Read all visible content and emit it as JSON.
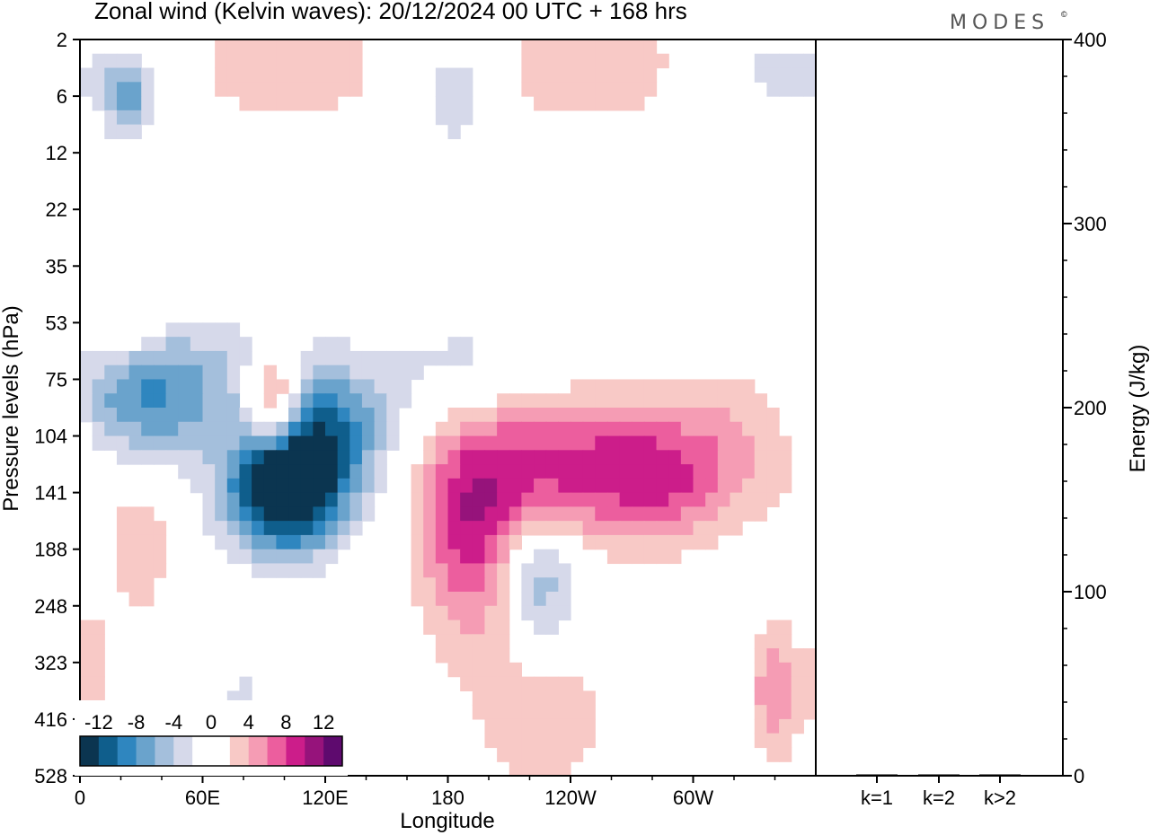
{
  "title": "Zonal wind (Kelvin waves):  20/12/2024  00 UTC  + 168 hrs",
  "logo": "MODES",
  "logo_mark": "©",
  "colors": {
    "neg": [
      "#0b3550",
      "#0f5e8c",
      "#2f86bf",
      "#6aa3cc",
      "#a4bfdc",
      "#d6d9ea"
    ],
    "pos": [
      "#f8c9c6",
      "#f59cb4",
      "#ec5e9e",
      "#cc1d8a",
      "#96137b",
      "#5e0a6e"
    ]
  },
  "chart_data": [
    {
      "type": "heatmap",
      "title": "Zonal wind (Kelvin waves):  20/12/2024  00 UTC  + 168 hrs",
      "xlabel": "Longitude",
      "ylabel": "Pressure levels (hPa)",
      "x_ticks": [
        "0",
        "60E",
        "120E",
        "180",
        "120W",
        "60W"
      ],
      "y_ticks": [
        "2",
        "6",
        "12",
        "22",
        "35",
        "53",
        "75",
        "104",
        "141",
        "188",
        "248",
        "323",
        "416",
        "528"
      ],
      "colorbar": {
        "labels": [
          "-12",
          "-8",
          "-4",
          "0",
          "4",
          "8",
          "12"
        ],
        "levels": [
          -14,
          -12,
          -10,
          -8,
          -6,
          -4,
          -2,
          2,
          4,
          6,
          8,
          10,
          12,
          14
        ]
      },
      "features": [
        {
          "lon": 100,
          "lev": 8.0,
          "value": -16,
          "sx": 20,
          "sy": 0.75
        },
        {
          "lon": 120,
          "lev": 6.9,
          "value": -9,
          "sx": 22,
          "sy": 0.8
        },
        {
          "lon": 28,
          "lev": 6.4,
          "value": -8,
          "sx": 25,
          "sy": 0.8
        },
        {
          "lon": 70,
          "lev": 5.9,
          "value": -3,
          "sx": 30,
          "sy": 0.8
        },
        {
          "lon": 190,
          "lev": 5.8,
          "value": -3,
          "sx": 30,
          "sy": 0.7
        },
        {
          "lon": 225,
          "lev": 9.6,
          "value": -6,
          "sx": 12,
          "sy": 0.8
        },
        {
          "lon": 80,
          "lev": 12.0,
          "value": -2.5,
          "sx": 10,
          "sy": 1.0
        },
        {
          "lon": 190,
          "lev": 8.8,
          "value": 8,
          "sx": 18,
          "sy": 1.3
        },
        {
          "lon": 230,
          "lev": 7.5,
          "value": 8,
          "sx": 35,
          "sy": 0.9
        },
        {
          "lon": 285,
          "lev": 7.8,
          "value": 6,
          "sx": 25,
          "sy": 0.8
        },
        {
          "lon": 330,
          "lev": 7.0,
          "value": 3.5,
          "sx": 35,
          "sy": 1.0
        },
        {
          "lon": 95,
          "lev": 6.4,
          "value": 10,
          "sx": 10,
          "sy": 0.6
        },
        {
          "lon": 23,
          "lev": 1.0,
          "value": -7,
          "sx": 8,
          "sy": 0.5
        },
        {
          "lon": 100,
          "lev": 0.5,
          "value": 3.5,
          "sx": 35,
          "sy": 0.8
        },
        {
          "lon": 250,
          "lev": 0.5,
          "value": 3.5,
          "sx": 45,
          "sy": 0.8
        },
        {
          "lon": 185,
          "lev": 0.9,
          "value": -4,
          "sx": 15,
          "sy": 0.8
        },
        {
          "lon": 340,
          "lev": 0.6,
          "value": -3,
          "sx": 30,
          "sy": 0.5
        },
        {
          "lon": 25,
          "lev": 5.0,
          "value": 3.5,
          "sx": 10,
          "sy": 0.5
        },
        {
          "lon": 340,
          "lev": 11.5,
          "value": 6,
          "sx": 8,
          "sy": 0.9
        },
        {
          "lon": 225,
          "lev": 12.0,
          "value": 3.5,
          "sx": 25,
          "sy": 1.0
        },
        {
          "lon": 5,
          "lev": 11.2,
          "value": 3.5,
          "sx": 7,
          "sy": 1.0
        },
        {
          "lon": 30,
          "lev": 9.0,
          "value": 3.5,
          "sx": 10,
          "sy": 1.0
        }
      ]
    },
    {
      "type": "bar",
      "ylabel": "Energy (J/kg)",
      "categories": [
        "k=1",
        "k=2",
        "k>2"
      ],
      "values": [
        0.6,
        0.4,
        0.7
      ],
      "ylim": [
        0,
        400
      ],
      "y_ticks": [
        "0",
        "100",
        "200",
        "300",
        "400"
      ]
    }
  ]
}
